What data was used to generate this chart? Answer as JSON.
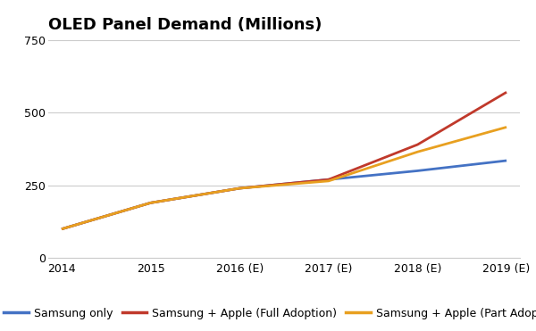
{
  "title": "OLED Panel Demand (Millions)",
  "x_labels": [
    "2014",
    "2015",
    "2016 (E)",
    "2017 (E)",
    "2018 (E)",
    "2019 (E)"
  ],
  "x_values": [
    0,
    1,
    2,
    3,
    4,
    5
  ],
  "series": [
    {
      "label": "Samsung only",
      "color": "#4472C4",
      "values": [
        100,
        190,
        240,
        270,
        300,
        335
      ]
    },
    {
      "label": "Samsung + Apple (Full Adoption)",
      "color": "#C0392B",
      "values": [
        100,
        190,
        240,
        270,
        390,
        570
      ]
    },
    {
      "label": "Samsung + Apple (Part Adoption)",
      "color": "#E8A020",
      "values": [
        100,
        190,
        240,
        265,
        365,
        450
      ]
    }
  ],
  "ylim": [
    0,
    750
  ],
  "yticks": [
    0,
    250,
    500,
    750
  ],
  "background_color": "#ffffff",
  "grid_color": "#cccccc",
  "title_fontsize": 13,
  "legend_fontsize": 9,
  "tick_fontsize": 9,
  "line_width": 2.0
}
